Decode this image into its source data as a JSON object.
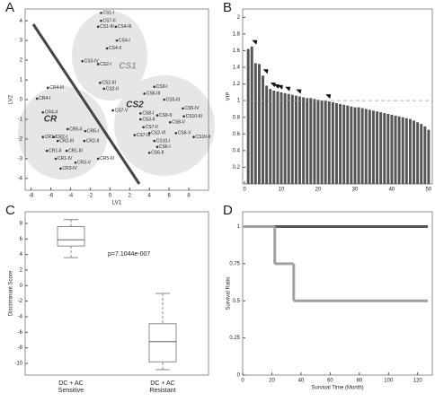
{
  "chart_data": [
    {
      "type": "scatter",
      "panel": "A",
      "x_label": "LV1",
      "y_label": "LV2",
      "xlim": [
        -8.6,
        10
      ],
      "ylim": [
        -4.6,
        4.6
      ],
      "xticks": [
        -8,
        -6,
        -4,
        -2,
        0,
        2,
        4,
        6,
        8
      ],
      "yticks": [
        -4,
        -3,
        -2,
        -1,
        0,
        1,
        2,
        3,
        4
      ],
      "cluster_labels": [
        "CS1",
        "CS2",
        "CR"
      ],
      "labels": [
        "CS1-I",
        "CS7-II",
        "CS1-III",
        "CS4-III",
        "CS4-I",
        "CS4-II",
        "CS3-IV",
        "CS2-I",
        "CS2-III",
        "CS2-II",
        "CS9-I",
        "CS6-III",
        "CS5-III",
        "CS7-V",
        "CS8-I",
        "CS9-II",
        "CS5-IV",
        "CS3-II",
        "CS10-III",
        "CS8-V",
        "CS7-II",
        "CS6-V",
        "CS2-VI",
        "CS7-III",
        "CS10-II",
        "CS10-I",
        "CS6-I",
        "CS6-II",
        "CR4-III",
        "CR4-I",
        "CR4-II",
        "CR5-II",
        "CR5-I",
        "CR2-I",
        "CR1-I",
        "CR2-III",
        "CR2-II",
        "CR1-II",
        "CR1-III",
        "CR1-IV",
        "CR3-V",
        "CR5-III",
        "CR3-IV"
      ],
      "x": [
        -0.9,
        -0.9,
        -1.2,
        0.6,
        0.7,
        -0.3,
        -2.8,
        -1.2,
        -1.0,
        -0.6,
        4.5,
        3.5,
        5.5,
        0.3,
        3.1,
        4.8,
        7.4,
        3.1,
        7.5,
        6.1,
        3.4,
        6.7,
        4.0,
        2.5,
        8.5,
        4.5,
        4.8,
        4.0,
        -6.3,
        -7.4,
        -6.8,
        -4.3,
        -2.5,
        -5.7,
        -6.8,
        -5.3,
        -2.6,
        -6.4,
        -4.4,
        -5.5,
        -3.5,
        -1.2,
        -5.0
      ],
      "values": [
        4.4,
        4.0,
        3.7,
        3.7,
        3.0,
        2.6,
        1.95,
        1.8,
        0.85,
        0.55,
        0.65,
        0.3,
        0.0,
        -0.55,
        -0.7,
        -0.8,
        -0.45,
        -1.0,
        -0.85,
        -1.15,
        -1.4,
        -1.7,
        -1.7,
        -1.8,
        -1.9,
        -2.1,
        -2.4,
        -2.7,
        0.6,
        0.05,
        -0.65,
        -1.5,
        -1.6,
        -1.9,
        -1.9,
        -2.1,
        -2.1,
        -2.6,
        -2.6,
        -3.0,
        -3.2,
        -3.0,
        -3.5
      ],
      "color": "#333333"
    },
    {
      "type": "bar",
      "panel": "B",
      "y_label": "VIP",
      "xlim": [
        -0.5,
        51
      ],
      "ylim": [
        0,
        2.1
      ],
      "xticks": [
        0,
        10,
        20,
        30,
        40,
        50
      ],
      "yticks": [
        0.2,
        0.4,
        0.6,
        0.8,
        1,
        1.2,
        1.4,
        1.6,
        1.8,
        2
      ],
      "values": [
        1.62,
        1.65,
        1.45,
        1.44,
        1.3,
        1.18,
        1.14,
        1.12,
        1.11,
        1.1,
        1.09,
        1.08,
        1.07,
        1.06,
        1.05,
        1.04,
        1.03,
        1.03,
        1.02,
        1.01,
        1.0,
        1.0,
        0.99,
        0.98,
        0.97,
        0.96,
        0.95,
        0.94,
        0.93,
        0.92,
        0.92,
        0.91,
        0.9,
        0.89,
        0.88,
        0.87,
        0.86,
        0.85,
        0.84,
        0.83,
        0.82,
        0.81,
        0.8,
        0.79,
        0.78,
        0.76,
        0.74,
        0.72,
        0.69,
        0.65
      ],
      "markers": [
        2,
        5,
        7,
        8,
        9,
        11,
        14,
        22
      ],
      "reference_line": 1,
      "color": "#555555"
    },
    {
      "type": "box",
      "panel": "C",
      "y_label": "Discriminant Score",
      "annotation": "p=7.1044e-007",
      "xlim": [
        0.5,
        2.5
      ],
      "ylim": [
        -11.5,
        9.5
      ],
      "yticks": [
        -10,
        -8,
        -6,
        -4,
        -2,
        0,
        2,
        4,
        6,
        8
      ],
      "categories": [
        "DC + AC Sensitive",
        "DC + AC Resistant"
      ],
      "stats": [
        {
          "min": 3.6,
          "q1": 5.1,
          "median": 5.9,
          "q3": 7.6,
          "max": 8.5
        },
        {
          "min": -10.8,
          "q1": -9.8,
          "median": -7.2,
          "q3": -4.9,
          "max": -1.0
        }
      ],
      "color": "#888888"
    },
    {
      "type": "line",
      "panel": "D",
      "x_label": "Survival Time (Month)",
      "y_label": "Survival Ratio",
      "xlim": [
        0,
        130
      ],
      "ylim": [
        0,
        1.1
      ],
      "xticks": [
        0,
        20,
        40,
        60,
        80,
        100,
        120
      ],
      "yticks": [
        0,
        0.25,
        0.5,
        0.75,
        1
      ],
      "step": true,
      "series": [
        {
          "color": "#555555",
          "x": [
            0,
            127
          ],
          "values": [
            1,
            1
          ]
        },
        {
          "color": "#a0a0a0",
          "x": [
            0,
            22,
            35,
            127
          ],
          "values": [
            1,
            0.75,
            0.5,
            0.5
          ]
        }
      ]
    }
  ]
}
